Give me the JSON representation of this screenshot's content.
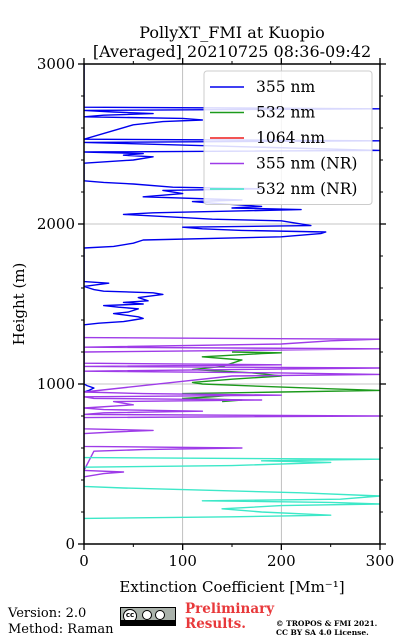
{
  "chart_data": {
    "type": "line",
    "title": "PollyXT_FMI at Kuopio",
    "subtitle": "[Averaged] 20210725 08:36-09:42",
    "xlabel": "Extinction Coefficient [Mm⁻¹]",
    "ylabel": "Height (m)",
    "xlim": [
      0,
      300
    ],
    "ylim": [
      0,
      3000
    ],
    "xticks": [
      "0",
      "100",
      "200",
      "300"
    ],
    "yticks": [
      "0",
      "1000",
      "2000",
      "3000"
    ],
    "grid": true,
    "legend_position": "top-right",
    "series": [
      {
        "name": "355 nm",
        "color": "#0000ee",
        "points": [
          [
            0,
            950
          ],
          [
            5,
            960
          ],
          [
            10,
            975
          ],
          [
            3,
            990
          ],
          [
            0,
            1000
          ],
          [
            0,
            1370
          ],
          [
            15,
            1380
          ],
          [
            40,
            1390
          ],
          [
            50,
            1400
          ],
          [
            60,
            1410
          ],
          [
            55,
            1420
          ],
          [
            30,
            1440
          ],
          [
            45,
            1450
          ],
          [
            55,
            1470
          ],
          [
            35,
            1480
          ],
          [
            20,
            1490
          ],
          [
            60,
            1500
          ],
          [
            40,
            1510
          ],
          [
            65,
            1520
          ],
          [
            55,
            1540
          ],
          [
            80,
            1560
          ],
          [
            70,
            1570
          ],
          [
            20,
            1580
          ],
          [
            10,
            1590
          ],
          [
            5,
            1600
          ],
          [
            0,
            1610
          ],
          [
            25,
            1630
          ],
          [
            0,
            1640
          ],
          [
            0,
            1850
          ],
          [
            30,
            1860
          ],
          [
            50,
            1880
          ],
          [
            60,
            1900
          ],
          [
            200,
            1920
          ],
          [
            240,
            1940
          ],
          [
            245,
            1950
          ],
          [
            160,
            1960
          ],
          [
            120,
            1970
          ],
          [
            100,
            1980
          ],
          [
            230,
            1990
          ],
          [
            200,
            2020
          ],
          [
            130,
            2030
          ],
          [
            100,
            2040
          ],
          [
            40,
            2060
          ],
          [
            70,
            2070
          ],
          [
            220,
            2090
          ],
          [
            150,
            2100
          ],
          [
            180,
            2110
          ],
          [
            130,
            2130
          ],
          [
            110,
            2140
          ],
          [
            160,
            2150
          ],
          [
            60,
            2170
          ],
          [
            100,
            2190
          ],
          [
            80,
            2210
          ],
          [
            180,
            2220
          ],
          [
            90,
            2230
          ],
          [
            50,
            2250
          ],
          [
            20,
            2260
          ],
          [
            0,
            2270
          ],
          [
            0,
            2380
          ],
          [
            50,
            2400
          ],
          [
            70,
            2420
          ],
          [
            40,
            2430
          ],
          [
            60,
            2440
          ],
          [
            0,
            2450
          ],
          [
            300,
            2460
          ],
          [
            0,
            2510
          ],
          [
            300,
            2520
          ],
          [
            0,
            2530
          ],
          [
            50,
            2620
          ],
          [
            80,
            2640
          ],
          [
            120,
            2650
          ],
          [
            100,
            2660
          ],
          [
            0,
            2670
          ],
          [
            20,
            2680
          ],
          [
            70,
            2690
          ],
          [
            30,
            2700
          ],
          [
            0,
            2710
          ],
          [
            300,
            2720
          ],
          [
            0,
            2730
          ],
          [
            0,
            3000
          ]
        ]
      },
      {
        "name": "532 nm",
        "color": "#1c9a1c",
        "points": [
          [
            140,
            890
          ],
          [
            160,
            900
          ],
          [
            100,
            910
          ],
          [
            130,
            920
          ],
          [
            150,
            930
          ],
          [
            100,
            940
          ],
          [
            200,
            950
          ],
          [
            300,
            960
          ],
          [
            250,
            970
          ],
          [
            160,
            990
          ],
          [
            120,
            1000
          ],
          [
            110,
            1010
          ],
          [
            150,
            1030
          ],
          [
            200,
            1050
          ],
          [
            170,
            1070
          ],
          [
            110,
            1090
          ],
          [
            140,
            1110
          ],
          [
            160,
            1150
          ],
          [
            120,
            1170
          ],
          [
            180,
            1190
          ],
          [
            200,
            1195
          ],
          [
            150,
            1200
          ]
        ]
      },
      {
        "name": "1064 nm",
        "color": "#ee1c1c",
        "points": []
      },
      {
        "name": "355 nm (NR)",
        "color": "#9e3be8",
        "points": [
          [
            0,
            420
          ],
          [
            20,
            440
          ],
          [
            40,
            450
          ],
          [
            0,
            460
          ],
          [
            10,
            580
          ],
          [
            60,
            590
          ],
          [
            160,
            600
          ],
          [
            0,
            610
          ],
          [
            0,
            690
          ],
          [
            30,
            700
          ],
          [
            70,
            710
          ],
          [
            0,
            720
          ],
          [
            0,
            790
          ],
          [
            300,
            800
          ],
          [
            0,
            810
          ],
          [
            20,
            820
          ],
          [
            120,
            830
          ],
          [
            20,
            840
          ],
          [
            0,
            850
          ],
          [
            50,
            870
          ],
          [
            30,
            890
          ],
          [
            180,
            900
          ],
          [
            10,
            910
          ],
          [
            0,
            920
          ],
          [
            200,
            930
          ],
          [
            60,
            940
          ],
          [
            0,
            950
          ],
          [
            150,
            1050
          ],
          [
            300,
            1060
          ],
          [
            190,
            1070
          ],
          [
            0,
            1080
          ],
          [
            300,
            1100
          ],
          [
            0,
            1110
          ],
          [
            200,
            1120
          ],
          [
            0,
            1130
          ],
          [
            0,
            1200
          ],
          [
            160,
            1210
          ],
          [
            300,
            1220
          ],
          [
            0,
            1230
          ],
          [
            200,
            1250
          ],
          [
            250,
            1270
          ],
          [
            300,
            1280
          ],
          [
            0,
            1290
          ]
        ]
      },
      {
        "name": "532 nm (NR)",
        "color": "#3de8c8",
        "points": [
          [
            0,
            160
          ],
          [
            150,
            170
          ],
          [
            250,
            180
          ],
          [
            180,
            200
          ],
          [
            140,
            220
          ],
          [
            200,
            240
          ],
          [
            300,
            250
          ],
          [
            250,
            260
          ],
          [
            120,
            270
          ],
          [
            260,
            280
          ],
          [
            300,
            300
          ],
          [
            220,
            320
          ],
          [
            100,
            340
          ],
          [
            40,
            350
          ],
          [
            0,
            360
          ],
          [
            0,
            480
          ],
          [
            150,
            490
          ],
          [
            250,
            510
          ],
          [
            180,
            520
          ],
          [
            300,
            530
          ],
          [
            0,
            540
          ]
        ]
      }
    ]
  },
  "footer": {
    "version": "Version: 2.0",
    "method": "Method: Raman",
    "preliminary_line1": "Preliminary",
    "preliminary_line2": "Results.",
    "copyright_line1": "© TROPOS & FMI 2021.",
    "copyright_line2": "CC BY SA 4.0 License."
  },
  "badge_icon": "cc-by-sa-icon"
}
